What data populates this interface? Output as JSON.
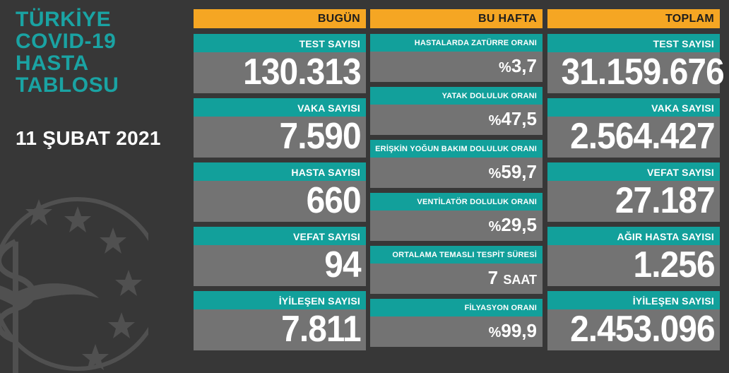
{
  "title": {
    "lines": [
      "TÜRKİYE",
      "COVID-19",
      "HASTA",
      "TABLOSU"
    ]
  },
  "date": "11 ŞUBAT 2021",
  "today": {
    "header": "BUGÜN",
    "items": [
      {
        "label": "TEST SAYISI",
        "value": "130.313"
      },
      {
        "label": "VAKA SAYISI",
        "value": "7.590"
      },
      {
        "label": "HASTA SAYISI",
        "value": "660"
      },
      {
        "label": "VEFAT SAYISI",
        "value": "94"
      },
      {
        "label": "İYİLEŞEN SAYISI",
        "value": "7.811"
      }
    ]
  },
  "week": {
    "header": "BU HAFTA",
    "items": [
      {
        "label": "HASTALARDA ZATÜRRE ORANI",
        "prefix": "%",
        "value": "3,7"
      },
      {
        "label": "YATAK DOLULUK ORANI",
        "prefix": "%",
        "value": "47,5"
      },
      {
        "label": "ERİŞKİN YOĞUN BAKIM DOLULUK ORANI",
        "prefix": "%",
        "value": "59,7"
      },
      {
        "label": "VENTİLATÖR DOLULUK ORANI",
        "prefix": "%",
        "value": "29,5"
      },
      {
        "label": "ORTALAMA TEMASLI TESPİT SÜRESİ",
        "value": "7",
        "suffix": "SAAT"
      },
      {
        "label": "FİLYASYON ORANI",
        "prefix": "%",
        "value": "99,9"
      }
    ]
  },
  "total": {
    "header": "TOPLAM",
    "items": [
      {
        "label": "TEST SAYISI",
        "value": "31.159.676"
      },
      {
        "label": "VAKA SAYISI",
        "value": "2.564.427"
      },
      {
        "label": "VEFAT SAYISI",
        "value": "27.187"
      },
      {
        "label": "AĞIR HASTA SAYISI",
        "value": "1.256"
      },
      {
        "label": "İYİLEŞEN SAYISI",
        "value": "2.453.096"
      }
    ]
  },
  "colors": {
    "background": "#373737",
    "header": "#f5a623",
    "label": "#12a09b",
    "card": "#737373",
    "title": "#1aa3a3"
  },
  "icons": [
    "ministry-emblem-icon"
  ]
}
